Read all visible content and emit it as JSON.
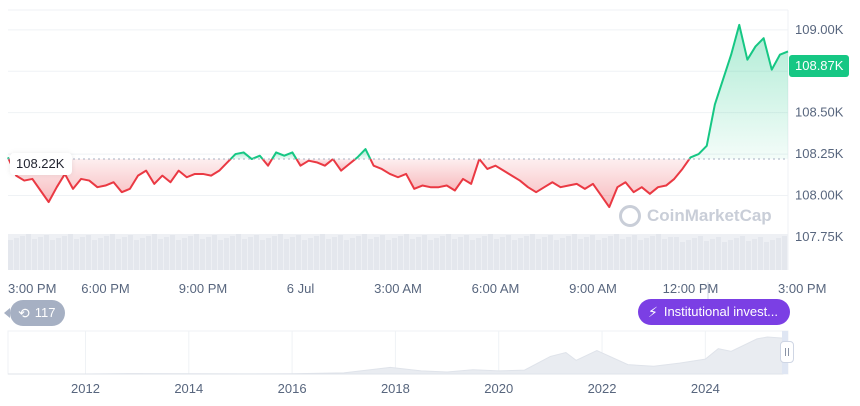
{
  "chart_data": [
    {
      "type": "area",
      "baseline": {
        "value": 108.22,
        "label": "108.22K"
      },
      "current_price": {
        "value": 108.87,
        "label": "108.87K"
      },
      "ylim": [
        107.55,
        109.12
      ],
      "y_ticks": [
        {
          "value": 109.0,
          "label": "109.00K"
        },
        {
          "value": 108.75,
          "label": "108.75K"
        },
        {
          "value": 108.5,
          "label": "108.50K"
        },
        {
          "value": 108.25,
          "label": "108.25K"
        },
        {
          "value": 108.0,
          "label": "108.00K"
        },
        {
          "value": 107.75,
          "label": "107.75K"
        }
      ],
      "x_range": [
        15.0,
        39.0
      ],
      "x_ticks": [
        {
          "value": 15,
          "label": "3:00 PM"
        },
        {
          "value": 18,
          "label": "6:00 PM"
        },
        {
          "value": 21,
          "label": "9:00 PM"
        },
        {
          "value": 24,
          "label": "6 Jul"
        },
        {
          "value": 27,
          "label": "3:00 AM"
        },
        {
          "value": 30,
          "label": "6:00 AM"
        },
        {
          "value": 33,
          "label": "9:00 AM"
        },
        {
          "value": 36,
          "label": "12:00 PM"
        },
        {
          "value": 39,
          "label": "3:00 PM"
        }
      ],
      "series": [
        {
          "x": [
            15.0,
            15.25,
            15.5,
            15.75,
            16.0,
            16.25,
            16.5,
            16.75,
            17.0,
            17.25,
            17.5,
            17.75,
            18.0,
            18.25,
            18.5,
            18.75,
            19.0,
            19.25,
            19.5,
            19.75,
            20.0,
            20.25,
            20.5,
            20.75,
            21.0,
            21.25,
            21.5,
            21.75,
            22.0,
            22.25,
            22.5,
            22.75,
            23.0,
            23.25,
            23.5,
            23.75,
            24.0,
            24.25,
            24.5,
            24.75,
            25.0,
            25.25,
            25.5,
            25.75,
            26.0,
            26.25,
            26.5,
            26.75,
            27.0,
            27.25,
            27.5,
            27.75,
            28.0,
            28.25,
            28.5,
            28.75,
            29.0,
            29.25,
            29.5,
            29.75,
            30.0,
            30.25,
            30.5,
            30.75,
            31.0,
            31.25,
            31.5,
            31.75,
            32.0,
            32.25,
            32.5,
            32.75,
            33.0,
            33.25,
            33.5,
            33.75,
            34.0,
            34.25,
            34.5,
            34.75,
            35.0,
            35.25,
            35.5,
            35.75,
            36.0,
            36.25,
            36.5,
            36.75,
            37.0,
            37.25,
            37.5,
            37.75,
            38.0,
            38.25,
            38.5,
            38.75,
            39.0
          ],
          "values": [
            108.23,
            108.12,
            108.09,
            108.1,
            108.03,
            107.96,
            108.05,
            108.13,
            108.04,
            108.1,
            108.09,
            108.05,
            108.06,
            108.08,
            108.02,
            108.04,
            108.12,
            108.15,
            108.07,
            108.12,
            108.08,
            108.15,
            108.11,
            108.13,
            108.13,
            108.12,
            108.15,
            108.2,
            108.25,
            108.26,
            108.22,
            108.24,
            108.18,
            108.26,
            108.24,
            108.26,
            108.18,
            108.21,
            108.2,
            108.18,
            108.22,
            108.15,
            108.19,
            108.23,
            108.28,
            108.18,
            108.16,
            108.13,
            108.11,
            108.13,
            108.04,
            108.06,
            108.05,
            108.05,
            108.06,
            108.03,
            108.1,
            108.07,
            108.22,
            108.16,
            108.18,
            108.15,
            108.12,
            108.09,
            108.05,
            108.02,
            108.05,
            108.08,
            108.05,
            108.06,
            108.07,
            108.04,
            108.07,
            108.0,
            107.93,
            108.05,
            108.08,
            108.02,
            108.05,
            108.01,
            108.05,
            108.06,
            108.1,
            108.16,
            108.23,
            108.25,
            108.3,
            108.55,
            108.7,
            108.85,
            109.03,
            108.82,
            108.9,
            108.95,
            108.76,
            108.85,
            108.87
          ]
        }
      ]
    },
    {
      "type": "area",
      "title": "",
      "x_ticks": [
        {
          "value": 2012,
          "label": "2012"
        },
        {
          "value": 2014,
          "label": "2014"
        },
        {
          "value": 2016,
          "label": "2016"
        },
        {
          "value": 2018,
          "label": "2018"
        },
        {
          "value": 2020,
          "label": "2020"
        },
        {
          "value": 2022,
          "label": "2022"
        },
        {
          "value": 2024,
          "label": "2024"
        }
      ],
      "x_range": [
        2010.5,
        2025.6
      ],
      "series": [
        {
          "x": [
            2010.5,
            2012,
            2013,
            2014,
            2015,
            2016,
            2017,
            2017.9,
            2018.5,
            2019,
            2019.5,
            2020,
            2020.5,
            2021,
            2021.3,
            2021.5,
            2021.9,
            2022.5,
            2023,
            2023.5,
            2024,
            2024.25,
            2024.5,
            2025,
            2025.2,
            2025.5
          ],
          "values": [
            0.0,
            0.0,
            0.01,
            0.005,
            0.003,
            0.005,
            0.03,
            0.17,
            0.08,
            0.05,
            0.11,
            0.08,
            0.1,
            0.45,
            0.55,
            0.35,
            0.6,
            0.24,
            0.2,
            0.28,
            0.38,
            0.65,
            0.58,
            0.9,
            0.95,
            0.92
          ]
        }
      ]
    }
  ],
  "labels": {
    "baseline_tag": "108.22K",
    "price_tag": "108.87K",
    "events_count": "117",
    "news_label": "Institutional invest...",
    "watermark": "CoinMarketCap"
  },
  "colors": {
    "up": "#16c784",
    "down": "#ea3943",
    "news": "#7b3fe4",
    "events": "#a6b0c3",
    "grid": "#eff2f5",
    "axis_text": "#58667e"
  },
  "icons": {
    "events": "history-icon",
    "news": "lightning-icon",
    "watermark": "coinmarketcap-logo"
  }
}
